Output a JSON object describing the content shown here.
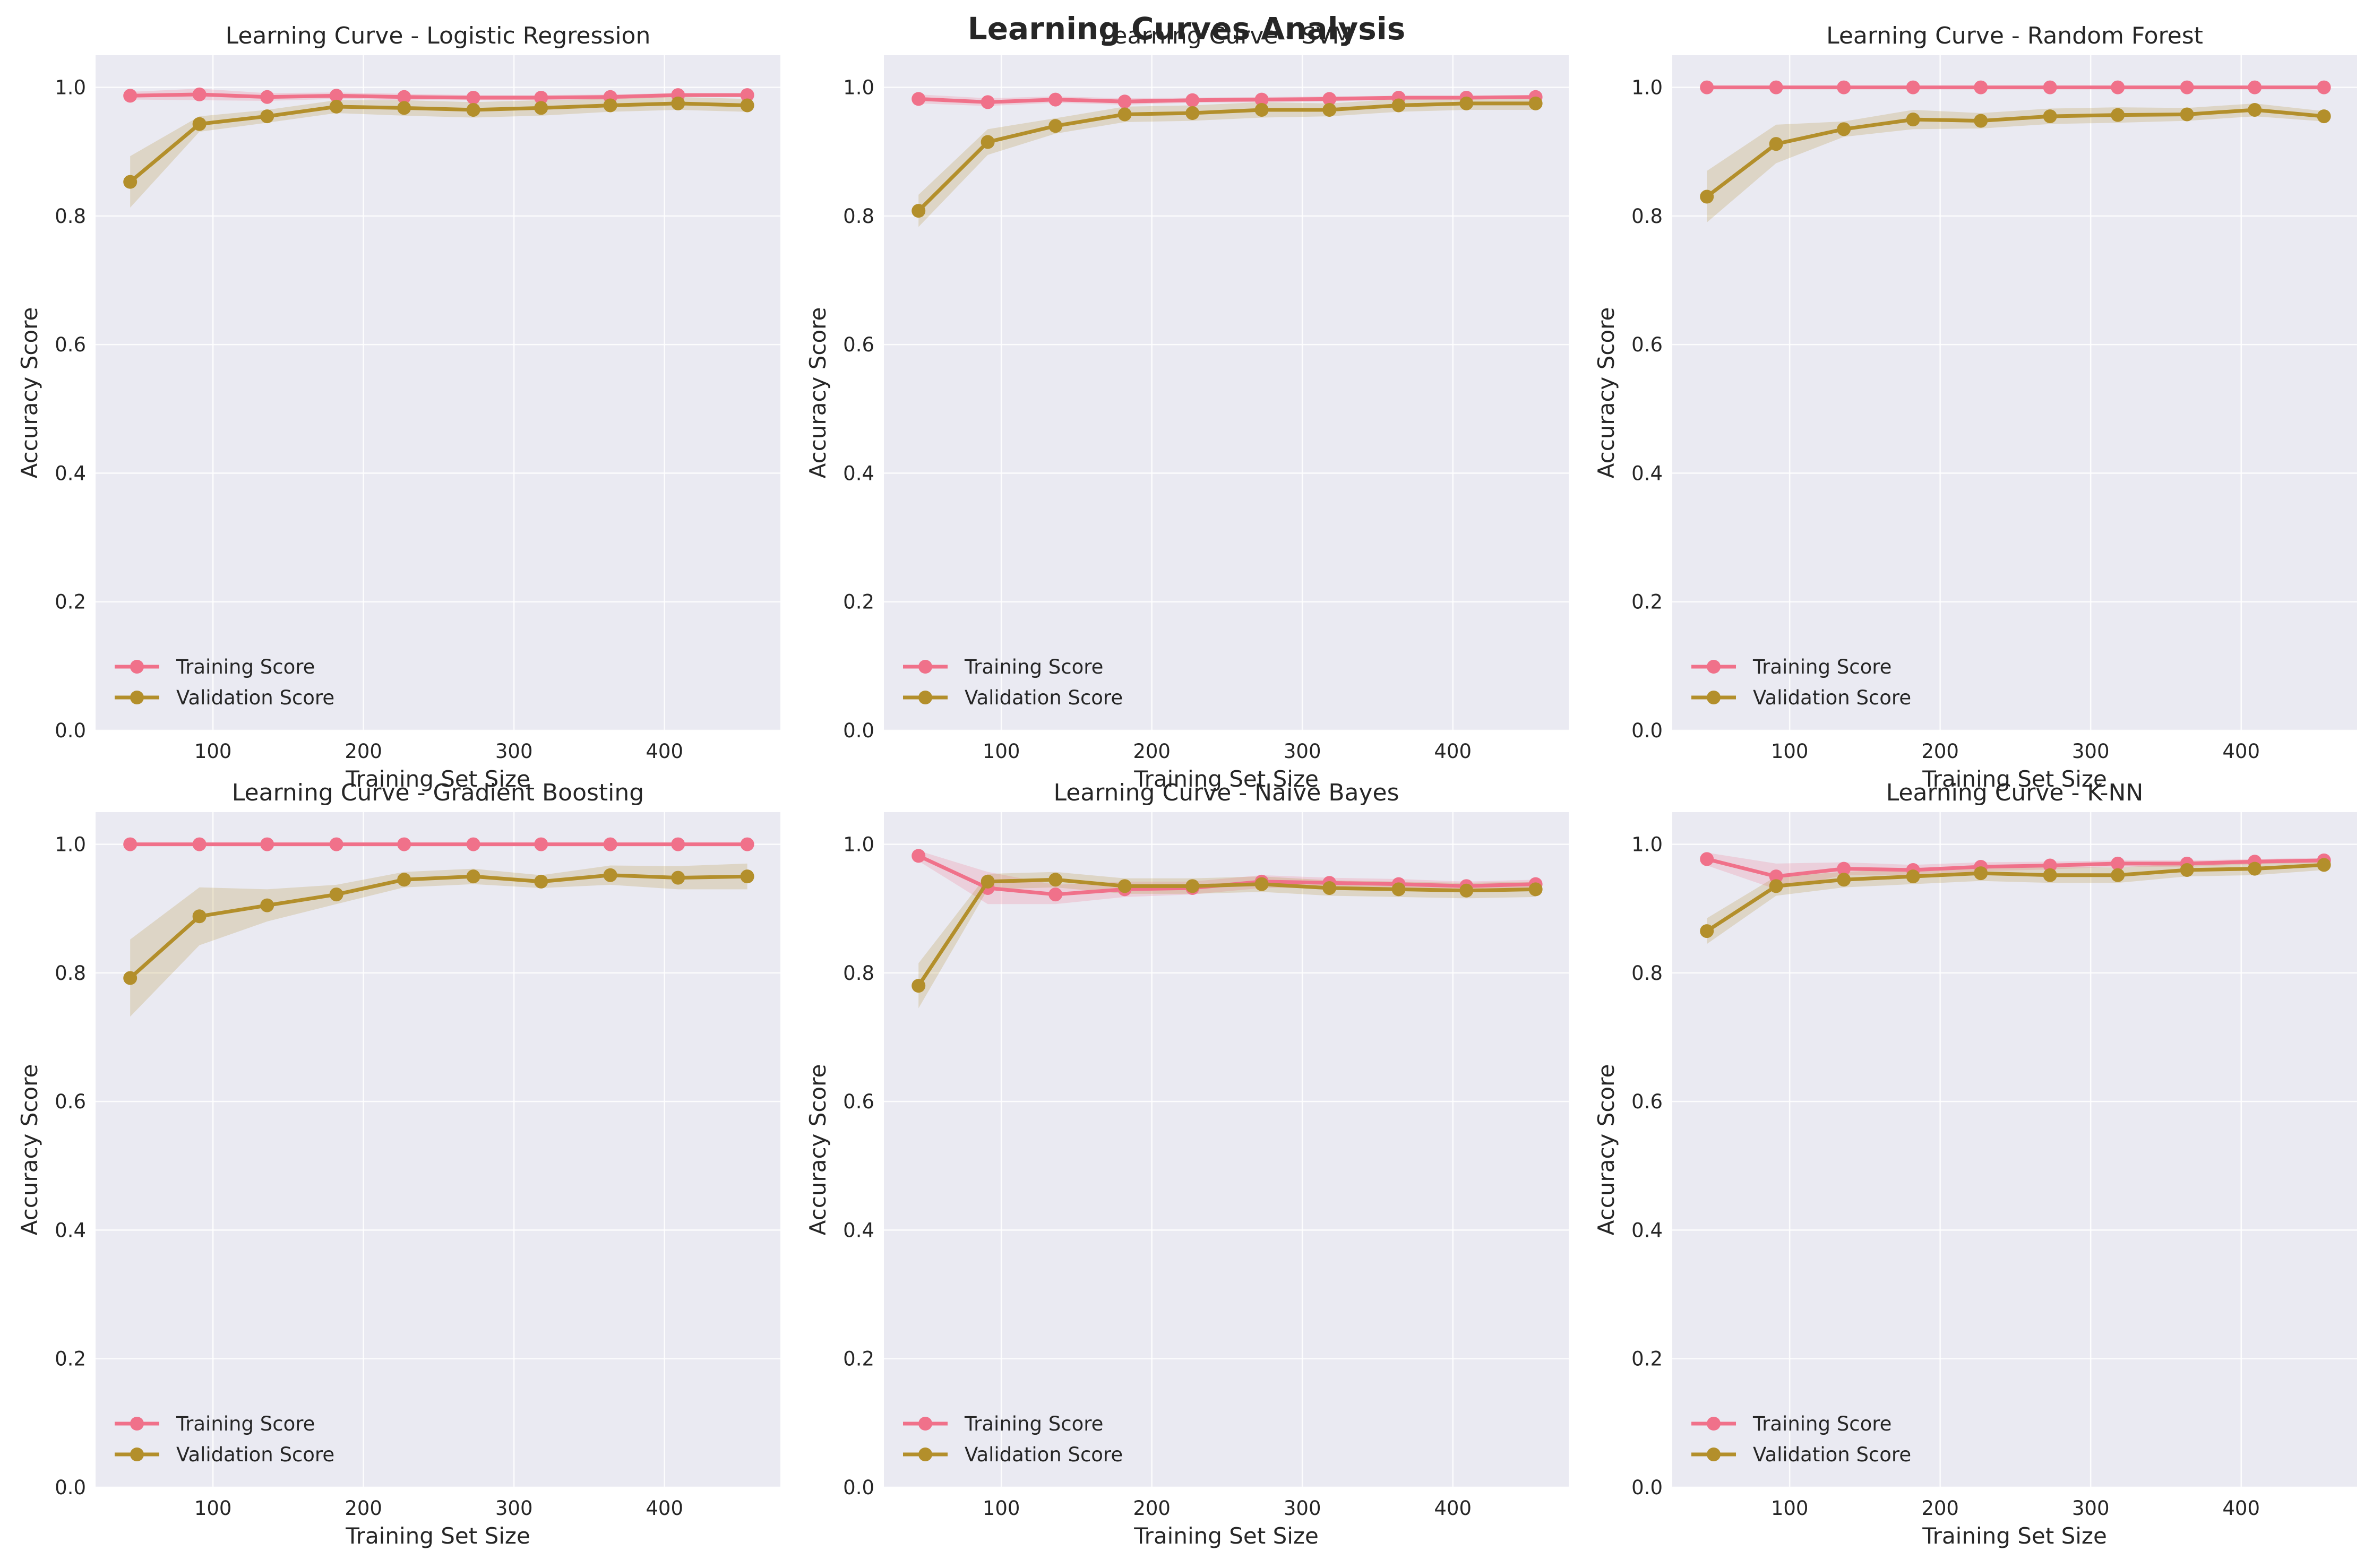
{
  "suptitle": "Learning Curves Analysis",
  "colors": {
    "training": "#f0718a",
    "validation": "#b38f2b",
    "axes_bg": "#eaeaf2",
    "grid": "#ffffff",
    "text": "#262626"
  },
  "chart_data": [
    {
      "type": "line",
      "title": "Learning Curve - Logistic Regression",
      "xlabel": "Training Set Size",
      "ylabel": "Accuracy Score",
      "xlim": [
        22,
        477
      ],
      "ylim": [
        0,
        1.05
      ],
      "xticks": [
        100,
        200,
        300,
        400
      ],
      "yticks": [
        "0.0",
        "0.2",
        "0.4",
        "0.6",
        "0.8",
        "1.0"
      ],
      "legend_position": "lower-left",
      "grid": true,
      "x": [
        45,
        91,
        136,
        182,
        227,
        273,
        318,
        364,
        409,
        455
      ],
      "series": [
        {
          "name": "Training Score",
          "values": [
            0.987,
            0.989,
            0.985,
            0.987,
            0.985,
            0.984,
            0.984,
            0.985,
            0.988,
            0.988
          ],
          "band": [
            0.006,
            0.009,
            0.006,
            0.005,
            0.005,
            0.004,
            0.004,
            0.004,
            0.003,
            0.003
          ]
        },
        {
          "name": "Validation Score",
          "values": [
            0.853,
            0.943,
            0.955,
            0.97,
            0.968,
            0.965,
            0.968,
            0.972,
            0.975,
            0.972
          ],
          "band": [
            0.04,
            0.012,
            0.01,
            0.01,
            0.012,
            0.012,
            0.012,
            0.01,
            0.01,
            0.01
          ]
        }
      ]
    },
    {
      "type": "line",
      "title": "Learning Curve - SVM",
      "xlabel": "Training Set Size",
      "ylabel": "Accuracy Score",
      "xlim": [
        22,
        477
      ],
      "ylim": [
        0,
        1.05
      ],
      "xticks": [
        100,
        200,
        300,
        400
      ],
      "yticks": [
        "0.0",
        "0.2",
        "0.4",
        "0.6",
        "0.8",
        "1.0"
      ],
      "legend_position": "lower-left",
      "grid": true,
      "x": [
        45,
        91,
        136,
        182,
        227,
        273,
        318,
        364,
        409,
        455
      ],
      "series": [
        {
          "name": "Training Score",
          "values": [
            0.982,
            0.977,
            0.981,
            0.978,
            0.98,
            0.981,
            0.982,
            0.984,
            0.984,
            0.985
          ],
          "band": [
            0.007,
            0.006,
            0.005,
            0.005,
            0.004,
            0.004,
            0.004,
            0.003,
            0.003,
            0.003
          ]
        },
        {
          "name": "Validation Score",
          "values": [
            0.808,
            0.915,
            0.94,
            0.958,
            0.96,
            0.965,
            0.965,
            0.972,
            0.975,
            0.975
          ],
          "band": [
            0.025,
            0.02,
            0.012,
            0.012,
            0.012,
            0.012,
            0.01,
            0.01,
            0.01,
            0.01
          ]
        }
      ]
    },
    {
      "type": "line",
      "title": "Learning Curve - Random Forest",
      "xlabel": "Training Set Size",
      "ylabel": "Accuracy Score",
      "xlim": [
        22,
        477
      ],
      "ylim": [
        0,
        1.05
      ],
      "xticks": [
        100,
        200,
        300,
        400
      ],
      "yticks": [
        "0.0",
        "0.2",
        "0.4",
        "0.6",
        "0.8",
        "1.0"
      ],
      "legend_position": "lower-left",
      "grid": true,
      "x": [
        45,
        91,
        136,
        182,
        227,
        273,
        318,
        364,
        409,
        455
      ],
      "series": [
        {
          "name": "Training Score",
          "values": [
            1.0,
            1.0,
            1.0,
            1.0,
            1.0,
            1.0,
            1.0,
            1.0,
            1.0,
            1.0
          ],
          "band": [
            0,
            0,
            0,
            0,
            0,
            0,
            0,
            0,
            0,
            0
          ]
        },
        {
          "name": "Validation Score",
          "values": [
            0.83,
            0.912,
            0.935,
            0.95,
            0.948,
            0.955,
            0.957,
            0.958,
            0.965,
            0.955
          ],
          "band": [
            0.04,
            0.03,
            0.012,
            0.015,
            0.012,
            0.012,
            0.012,
            0.01,
            0.01,
            0.008
          ]
        }
      ]
    },
    {
      "type": "line",
      "title": "Learning Curve - Gradient Boosting",
      "xlabel": "Training Set Size",
      "ylabel": "Accuracy Score",
      "xlim": [
        22,
        477
      ],
      "ylim": [
        0,
        1.05
      ],
      "xticks": [
        100,
        200,
        300,
        400
      ],
      "yticks": [
        "0.0",
        "0.2",
        "0.4",
        "0.6",
        "0.8",
        "1.0"
      ],
      "legend_position": "lower-left",
      "grid": true,
      "x": [
        45,
        91,
        136,
        182,
        227,
        273,
        318,
        364,
        409,
        455
      ],
      "series": [
        {
          "name": "Training Score",
          "values": [
            1.0,
            1.0,
            1.0,
            1.0,
            1.0,
            1.0,
            1.0,
            1.0,
            1.0,
            1.0
          ],
          "band": [
            0,
            0,
            0,
            0,
            0,
            0,
            0,
            0,
            0,
            0
          ]
        },
        {
          "name": "Validation Score",
          "values": [
            0.792,
            0.888,
            0.905,
            0.922,
            0.945,
            0.95,
            0.942,
            0.952,
            0.948,
            0.95
          ],
          "band": [
            0.06,
            0.045,
            0.025,
            0.015,
            0.012,
            0.012,
            0.01,
            0.015,
            0.018,
            0.02
          ]
        }
      ]
    },
    {
      "type": "line",
      "title": "Learning Curve - Naive Bayes",
      "xlabel": "Training Set Size",
      "ylabel": "Accuracy Score",
      "xlim": [
        22,
        477
      ],
      "ylim": [
        0,
        1.05
      ],
      "xticks": [
        100,
        200,
        300,
        400
      ],
      "yticks": [
        "0.0",
        "0.2",
        "0.4",
        "0.6",
        "0.8",
        "1.0"
      ],
      "legend_position": "lower-left",
      "grid": true,
      "x": [
        45,
        91,
        136,
        182,
        227,
        273,
        318,
        364,
        409,
        455
      ],
      "series": [
        {
          "name": "Training Score",
          "values": [
            0.982,
            0.932,
            0.922,
            0.93,
            0.932,
            0.942,
            0.94,
            0.938,
            0.935,
            0.938
          ],
          "band": [
            0.008,
            0.025,
            0.015,
            0.012,
            0.01,
            0.01,
            0.008,
            0.008,
            0.007,
            0.007
          ]
        },
        {
          "name": "Validation Score",
          "values": [
            0.78,
            0.942,
            0.945,
            0.935,
            0.935,
            0.938,
            0.932,
            0.93,
            0.928,
            0.93
          ],
          "band": [
            0.035,
            0.012,
            0.012,
            0.012,
            0.012,
            0.012,
            0.012,
            0.012,
            0.012,
            0.012
          ]
        }
      ]
    },
    {
      "type": "line",
      "title": "Learning Curve - K-NN",
      "xlabel": "Training Set Size",
      "ylabel": "Accuracy Score",
      "xlim": [
        22,
        477
      ],
      "ylim": [
        0,
        1.05
      ],
      "xticks": [
        100,
        200,
        300,
        400
      ],
      "yticks": [
        "0.0",
        "0.2",
        "0.4",
        "0.6",
        "0.8",
        "1.0"
      ],
      "legend_position": "lower-left",
      "grid": true,
      "x": [
        45,
        91,
        136,
        182,
        227,
        273,
        318,
        364,
        409,
        455
      ],
      "series": [
        {
          "name": "Training Score",
          "values": [
            0.977,
            0.95,
            0.962,
            0.96,
            0.965,
            0.967,
            0.97,
            0.97,
            0.973,
            0.975
          ],
          "band": [
            0.01,
            0.02,
            0.01,
            0.008,
            0.007,
            0.006,
            0.005,
            0.005,
            0.004,
            0.004
          ]
        },
        {
          "name": "Validation Score",
          "values": [
            0.865,
            0.935,
            0.945,
            0.95,
            0.955,
            0.952,
            0.952,
            0.96,
            0.962,
            0.968
          ],
          "band": [
            0.02,
            0.015,
            0.012,
            0.012,
            0.012,
            0.012,
            0.012,
            0.01,
            0.01,
            0.008
          ]
        }
      ]
    }
  ]
}
